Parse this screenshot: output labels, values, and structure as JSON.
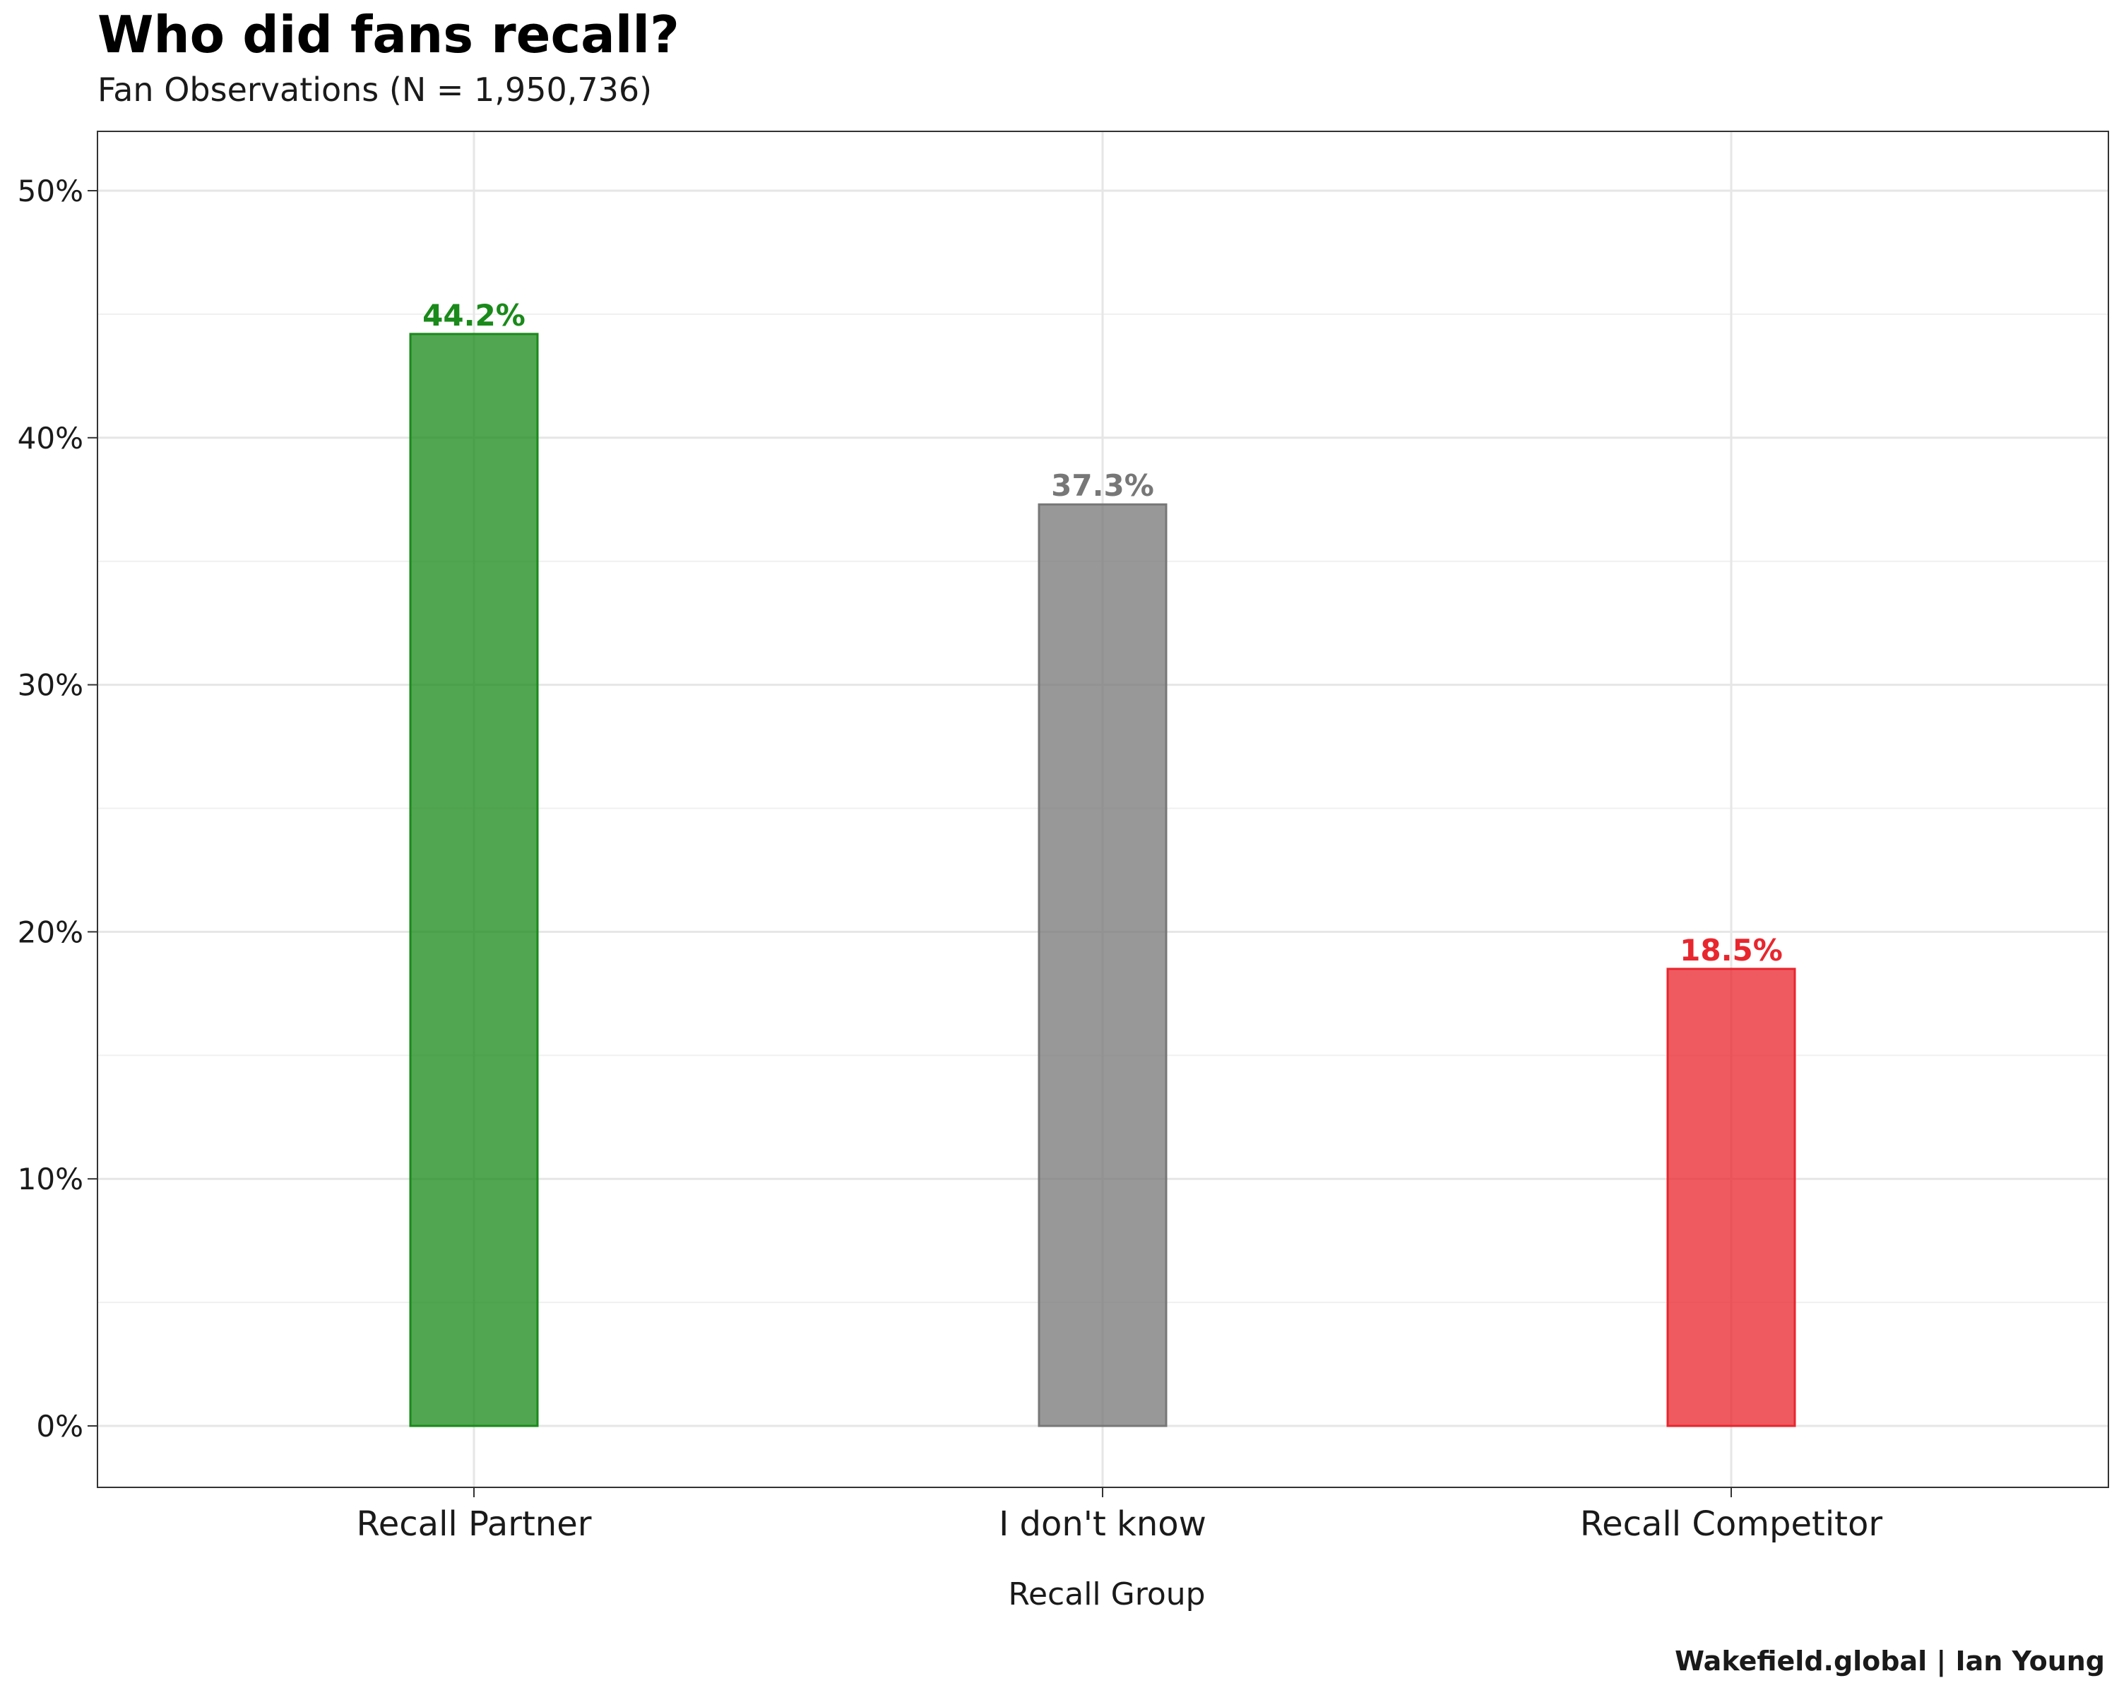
{
  "chart_data": {
    "type": "bar",
    "title": "Who did fans recall?",
    "subtitle": "Fan Observations (N = 1,950,736)",
    "caption": "Wakefield.global | Ian Young",
    "xlabel": "Recall Group",
    "ylabel": "",
    "categories": [
      "Recall Partner",
      "I don't know",
      "Recall Competitor"
    ],
    "values": [
      44.2,
      37.3,
      18.5
    ],
    "value_labels": [
      "44.2%",
      "37.3%",
      "18.5%"
    ],
    "colors": [
      "#1a8a1a",
      "#777777",
      "#e8262e"
    ],
    "ylim": [
      0,
      52.5
    ],
    "yticks": [
      0,
      10,
      20,
      30,
      40,
      50
    ],
    "ytick_labels": [
      "0%",
      "10%",
      "20%",
      "30%",
      "40%",
      "50%"
    ],
    "grid": true,
    "legend": "none"
  }
}
